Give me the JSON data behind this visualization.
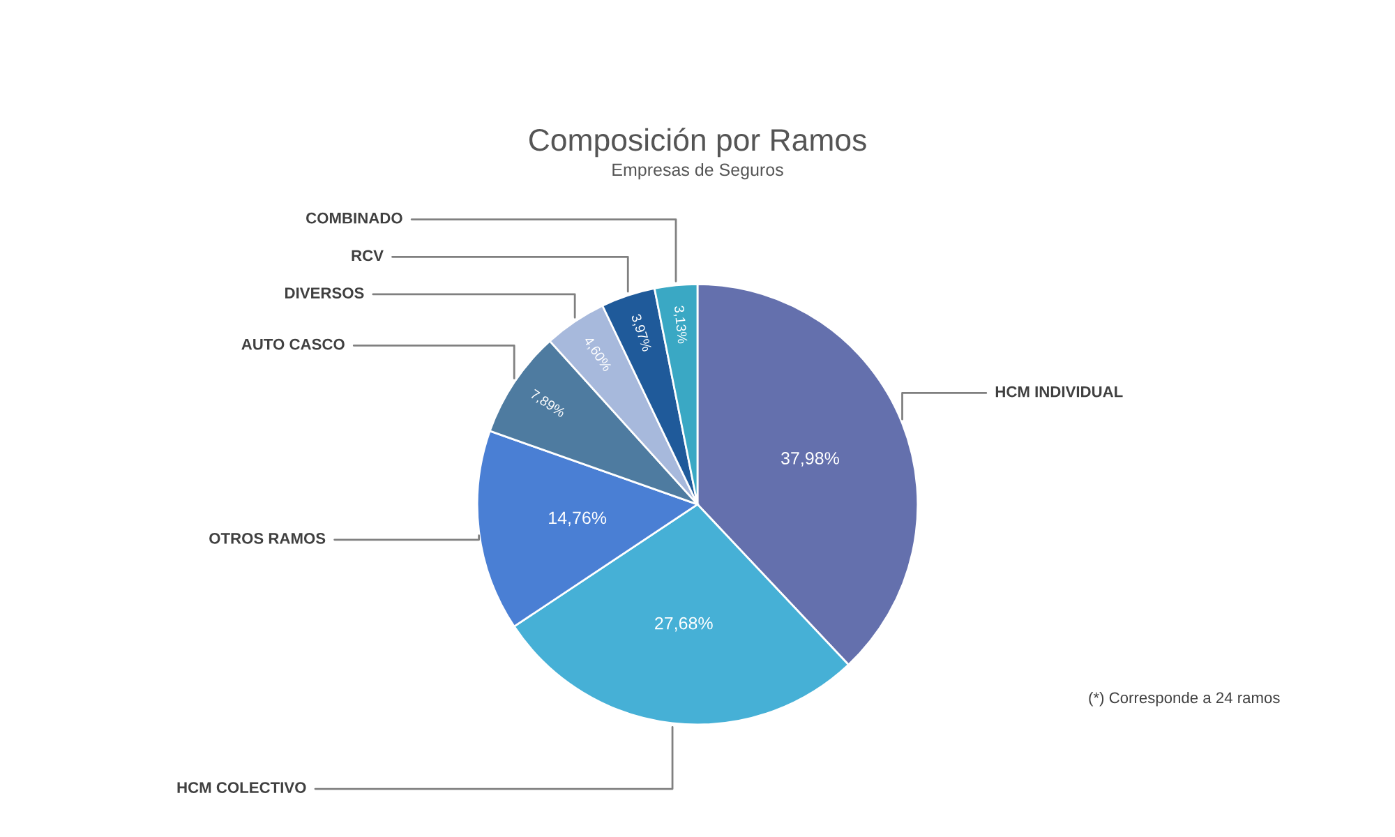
{
  "chart_data": {
    "type": "pie",
    "title": "Composición por Ramos",
    "subtitle": "Empresas de Seguros",
    "categories": [
      "HCM INDIVIDUAL",
      "HCM COLECTIVO",
      "OTROS RAMOS",
      "AUTO CASCO",
      "DIVERSOS",
      "RCV",
      "COMBINADO"
    ],
    "values": [
      37.98,
      27.68,
      14.76,
      7.89,
      4.6,
      3.97,
      3.13
    ],
    "value_labels": [
      "37,98%",
      "27,68%",
      "14,76%",
      "7,89%",
      "4,60%",
      "3,97%",
      "3,13%"
    ],
    "colors": [
      "#6470ad",
      "#46b0d6",
      "#4a7fd4",
      "#4e7ba0",
      "#a7b9dc",
      "#1f5a9a",
      "#3aa8c4"
    ],
    "annotations": [
      "(*) Corresponde a 24 ramos"
    ]
  }
}
